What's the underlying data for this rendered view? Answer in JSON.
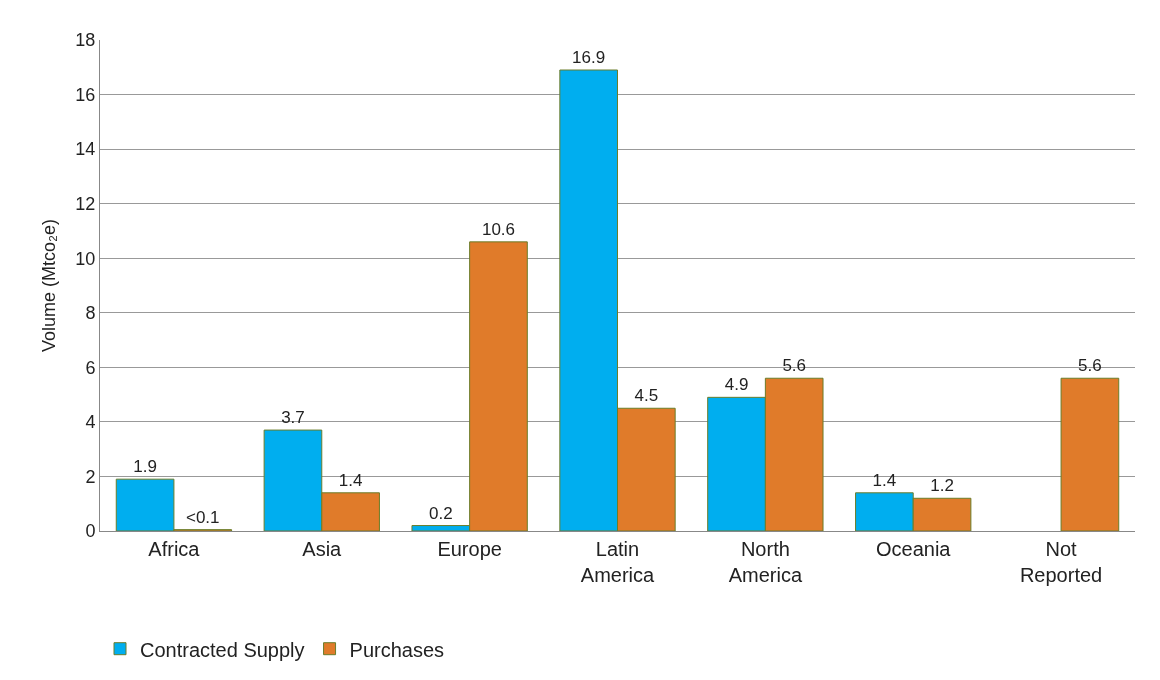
{
  "chart_data": {
    "type": "bar",
    "ylabel": "Volume (Mtco₂e)",
    "categories": [
      "Africa",
      "Asia",
      "Europe",
      "Latin America",
      "North America",
      "Oceania",
      "Not Reported"
    ],
    "series": [
      {
        "name": "Contracted Supply",
        "color": "#00aeef",
        "values": [
          1.9,
          3.7,
          0.2,
          16.9,
          4.9,
          1.4,
          null
        ],
        "value_labels": [
          "1.9",
          "3.7",
          "0.2",
          "16.9",
          "4.9",
          "1.4",
          null
        ]
      },
      {
        "name": "Purchases",
        "color": "#e07b2a",
        "values": [
          0.05,
          1.4,
          10.6,
          4.5,
          5.6,
          1.2,
          5.6
        ],
        "value_labels": [
          "<0.1",
          "1.4",
          "10.6",
          "4.5",
          "5.6",
          "1.2",
          "5.6"
        ]
      }
    ],
    "ylim": [
      0,
      18
    ],
    "yticks": [
      0,
      2,
      4,
      6,
      8,
      10,
      12,
      14,
      16,
      18
    ],
    "grid": "y",
    "legend": "bottom left"
  }
}
